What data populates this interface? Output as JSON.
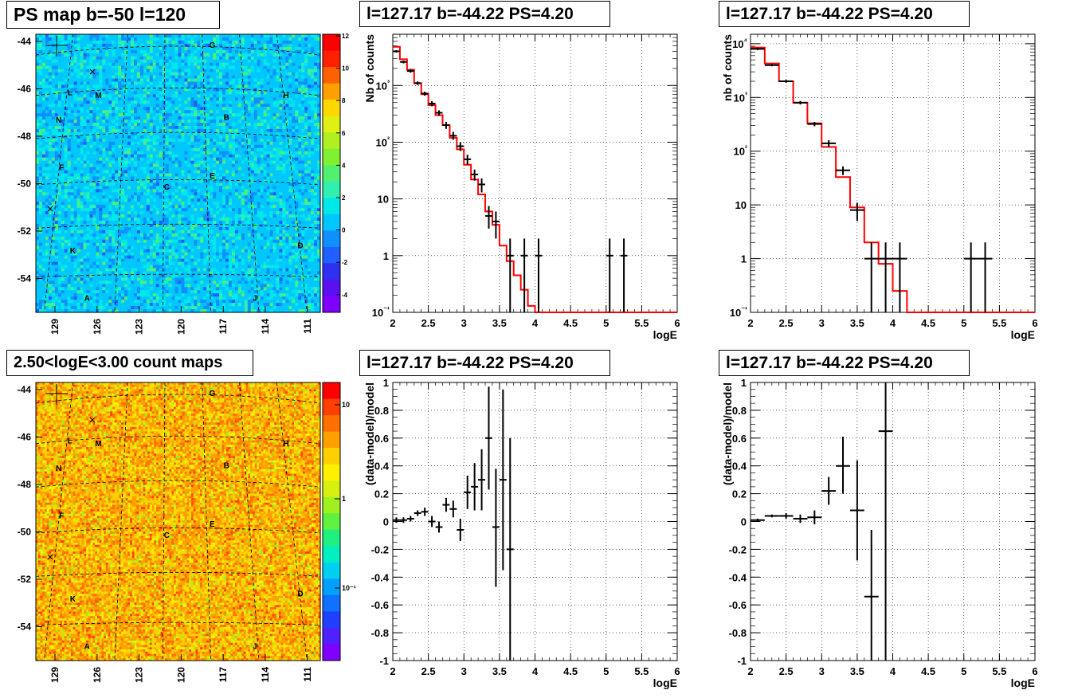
{
  "titles": {
    "map_top": "PS map b=-50 l=120",
    "map_bottom": "2.50<logE<3.00 count maps",
    "spec1": "l=127.17 b=-44.22 PS=4.20",
    "spec2": "l=127.17 b=-44.22 PS=4.20",
    "res1": "l=127.17 b=-44.22 PS=4.20",
    "res2": "l=127.17 b=-44.22 PS=4.20"
  },
  "colors": {
    "model_line": "#ff0000",
    "data": "#000000",
    "grid": "#000000"
  },
  "chart_data": [
    {
      "id": "map_top",
      "type": "heatmap",
      "title": "PS map b=-50 l=120",
      "x_ticks": [
        "129",
        "126",
        "123",
        "120",
        "117",
        "114",
        "111"
      ],
      "y_ticks": [
        "-44",
        "-46",
        "-48",
        "-50",
        "-52",
        "-54"
      ],
      "ylim": [
        -55.5,
        -43.6
      ],
      "xlim": [
        130.5,
        109.5
      ],
      "colorbar": {
        "min": -5,
        "max": 12,
        "ticks": [
          "12",
          "10",
          "8",
          "6",
          "4",
          "2",
          "0",
          "-2",
          "-4"
        ]
      },
      "source_labels": [
        "G",
        "L",
        "M",
        "H",
        "N",
        "B",
        "F",
        "E",
        "C",
        "K",
        "D",
        "A",
        "J"
      ]
    },
    {
      "id": "map_bottom",
      "type": "heatmap",
      "title": "2.50<logE<3.00 count maps",
      "x_ticks": [
        "129",
        "126",
        "123",
        "120",
        "117",
        "114",
        "111"
      ],
      "y_ticks": [
        "-44",
        "-46",
        "-48",
        "-50",
        "-52",
        "-54"
      ],
      "ylim": [
        -55.5,
        -43.6
      ],
      "xlim": [
        130.5,
        109.5
      ],
      "colorbar": {
        "scale": "log",
        "ticks": [
          "10",
          "1",
          "10⁻¹"
        ]
      },
      "source_labels": [
        "G",
        "L",
        "M",
        "H",
        "N",
        "B",
        "F",
        "E",
        "C",
        "K",
        "D",
        "A",
        "J"
      ]
    },
    {
      "id": "spec1",
      "type": "line",
      "title": "l=127.17 b=-44.22 PS=4.20",
      "xlabel": "logE",
      "ylabel": "Nb of counts",
      "xlim": [
        2,
        6
      ],
      "ylim": [
        0.1,
        8000
      ],
      "log_y": true,
      "grid": true,
      "x_ticks": [
        "2",
        "2.5",
        "3",
        "3.5",
        "4",
        "4.5",
        "5",
        "5.5",
        "6"
      ],
      "y_ticks": [
        "10⁻¹",
        "1",
        "10",
        "10²",
        "10³"
      ],
      "model_step": {
        "edges": [
          2.0,
          2.1,
          2.2,
          2.3,
          2.4,
          2.5,
          2.6,
          2.7,
          2.8,
          2.9,
          3.0,
          3.1,
          3.2,
          3.3,
          3.4,
          3.5,
          3.6,
          3.7,
          3.8,
          3.9,
          4.0,
          4.1,
          6.0
        ],
        "values": [
          4800,
          2900,
          1900,
          1100,
          700,
          450,
          300,
          200,
          120,
          75,
          40,
          22,
          12,
          6,
          3.5,
          1.5,
          0.8,
          0.45,
          0.25,
          0.13,
          0.1,
          0.1
        ]
      },
      "points": [
        {
          "x": 2.05,
          "y": 4000,
          "lo": 3800,
          "hi": 4200
        },
        {
          "x": 2.15,
          "y": 2600,
          "lo": 2450,
          "hi": 2750
        },
        {
          "x": 2.25,
          "y": 1800,
          "lo": 1680,
          "hi": 1920
        },
        {
          "x": 2.35,
          "y": 1100,
          "lo": 1020,
          "hi": 1180
        },
        {
          "x": 2.45,
          "y": 720,
          "lo": 660,
          "hi": 780
        },
        {
          "x": 2.55,
          "y": 480,
          "lo": 430,
          "hi": 530
        },
        {
          "x": 2.65,
          "y": 330,
          "lo": 295,
          "hi": 365
        },
        {
          "x": 2.75,
          "y": 200,
          "lo": 172,
          "hi": 228
        },
        {
          "x": 2.85,
          "y": 130,
          "lo": 110,
          "hi": 152
        },
        {
          "x": 2.95,
          "y": 85,
          "lo": 70,
          "hi": 100
        },
        {
          "x": 3.05,
          "y": 50,
          "lo": 40,
          "hi": 60
        },
        {
          "x": 3.15,
          "y": 27,
          "lo": 21,
          "hi": 33
        },
        {
          "x": 3.25,
          "y": 18,
          "lo": 13,
          "hi": 23
        },
        {
          "x": 3.35,
          "y": 5,
          "lo": 3,
          "hi": 7.5
        },
        {
          "x": 3.45,
          "y": 4,
          "lo": 2,
          "hi": 6
        },
        {
          "x": 3.65,
          "y": 1,
          "lo": 0.1,
          "hi": 2
        },
        {
          "x": 3.85,
          "y": 1,
          "lo": 0.1,
          "hi": 2
        },
        {
          "x": 4.05,
          "y": 1,
          "lo": 0.1,
          "hi": 2
        },
        {
          "x": 5.05,
          "y": 1,
          "lo": 0.1,
          "hi": 2
        },
        {
          "x": 5.25,
          "y": 1,
          "lo": 0.1,
          "hi": 2
        }
      ],
      "xerr": 0.05
    },
    {
      "id": "spec2",
      "type": "line",
      "title": "l=127.17 b=-44.22 PS=4.20",
      "xlabel": "logE",
      "ylabel": "nb of counts",
      "xlim": [
        2,
        6
      ],
      "ylim": [
        0.1,
        15000
      ],
      "log_y": true,
      "grid": true,
      "x_ticks": [
        "2",
        "2.5",
        "3",
        "3.5",
        "4",
        "4.5",
        "5",
        "5.5",
        "6"
      ],
      "y_ticks": [
        "10⁻¹",
        "1",
        "10",
        "10²",
        "10³",
        "10⁴"
      ],
      "model_step": {
        "edges": [
          2.0,
          2.2,
          2.4,
          2.6,
          2.8,
          3.0,
          3.2,
          3.4,
          3.6,
          3.8,
          4.0,
          4.2,
          6.0
        ],
        "values": [
          8500,
          4300,
          2000,
          800,
          330,
          120,
          33,
          9,
          2,
          0.8,
          0.25,
          0.1
        ]
      },
      "points": [
        {
          "x": 2.1,
          "y": 8000,
          "lo": 7600,
          "hi": 8400
        },
        {
          "x": 2.3,
          "y": 4000,
          "lo": 3800,
          "hi": 4200
        },
        {
          "x": 2.5,
          "y": 2000,
          "lo": 1880,
          "hi": 2120
        },
        {
          "x": 2.7,
          "y": 800,
          "lo": 740,
          "hi": 860
        },
        {
          "x": 2.9,
          "y": 320,
          "lo": 290,
          "hi": 350
        },
        {
          "x": 3.1,
          "y": 140,
          "lo": 120,
          "hi": 160
        },
        {
          "x": 3.3,
          "y": 44,
          "lo": 36,
          "hi": 52
        },
        {
          "x": 3.5,
          "y": 8,
          "lo": 5,
          "hi": 11
        },
        {
          "x": 3.7,
          "y": 1,
          "lo": 0.1,
          "hi": 2
        },
        {
          "x": 3.9,
          "y": 1,
          "lo": 0.1,
          "hi": 2
        },
        {
          "x": 4.1,
          "y": 1,
          "lo": 0.1,
          "hi": 2
        },
        {
          "x": 5.1,
          "y": 1,
          "lo": 0.1,
          "hi": 2
        },
        {
          "x": 5.3,
          "y": 1,
          "lo": 0.1,
          "hi": 2
        }
      ],
      "xerr": 0.1
    },
    {
      "id": "res1",
      "type": "scatter",
      "title": "l=127.17 b=-44.22 PS=4.20",
      "xlabel": "logE",
      "ylabel": "(data-model)/model",
      "xlim": [
        2,
        6
      ],
      "ylim": [
        -1,
        1
      ],
      "grid": true,
      "x_ticks": [
        "2",
        "2.5",
        "3",
        "3.5",
        "4",
        "4.5",
        "5",
        "5.5",
        "6"
      ],
      "y_ticks": [
        "-1",
        "-0.8",
        "-0.6",
        "-0.4",
        "-0.2",
        "0",
        "0.2",
        "0.4",
        "0.6",
        "0.8",
        "1"
      ],
      "points": [
        {
          "x": 2.05,
          "y": 0.01,
          "lo": -0.01,
          "hi": 0.03
        },
        {
          "x": 2.15,
          "y": 0.01,
          "lo": -0.01,
          "hi": 0.03
        },
        {
          "x": 2.25,
          "y": 0.02,
          "lo": 0.0,
          "hi": 0.04
        },
        {
          "x": 2.35,
          "y": 0.06,
          "lo": 0.04,
          "hi": 0.08
        },
        {
          "x": 2.45,
          "y": 0.07,
          "lo": 0.04,
          "hi": 0.1
        },
        {
          "x": 2.55,
          "y": 0.0,
          "lo": -0.04,
          "hi": 0.04
        },
        {
          "x": 2.65,
          "y": -0.04,
          "lo": -0.08,
          "hi": 0.0
        },
        {
          "x": 2.75,
          "y": 0.12,
          "lo": 0.07,
          "hi": 0.17
        },
        {
          "x": 2.85,
          "y": 0.09,
          "lo": 0.03,
          "hi": 0.15
        },
        {
          "x": 2.95,
          "y": -0.06,
          "lo": -0.14,
          "hi": 0.02
        },
        {
          "x": 3.05,
          "y": 0.21,
          "lo": 0.09,
          "hi": 0.33
        },
        {
          "x": 3.15,
          "y": 0.25,
          "lo": 0.08,
          "hi": 0.42
        },
        {
          "x": 3.25,
          "y": 0.3,
          "lo": 0.08,
          "hi": 0.52
        },
        {
          "x": 3.35,
          "y": 0.6,
          "lo": 0.23,
          "hi": 0.97
        },
        {
          "x": 3.45,
          "y": -0.04,
          "lo": -0.47,
          "hi": 0.38
        },
        {
          "x": 3.55,
          "y": 0.3,
          "lo": -0.35,
          "hi": 0.95
        },
        {
          "x": 3.65,
          "y": -0.2,
          "lo": -1.0,
          "hi": 0.6
        }
      ],
      "xerr": 0.05
    },
    {
      "id": "res2",
      "type": "scatter",
      "title": "l=127.17 b=-44.22 PS=4.20",
      "xlabel": "logE",
      "ylabel": "(data-model)/model",
      "xlim": [
        2,
        6
      ],
      "ylim": [
        -1,
        1
      ],
      "grid": true,
      "x_ticks": [
        "2",
        "2.5",
        "3",
        "3.5",
        "4",
        "4.5",
        "5",
        "5.5",
        "6"
      ],
      "y_ticks": [
        "-1",
        "-0.8",
        "-0.6",
        "-0.4",
        "-0.2",
        "0",
        "0.2",
        "0.4",
        "0.6",
        "0.8",
        "1"
      ],
      "points": [
        {
          "x": 2.1,
          "y": 0.01,
          "lo": 0.0,
          "hi": 0.02
        },
        {
          "x": 2.3,
          "y": 0.04,
          "lo": 0.03,
          "hi": 0.05
        },
        {
          "x": 2.5,
          "y": 0.04,
          "lo": 0.02,
          "hi": 0.06
        },
        {
          "x": 2.7,
          "y": 0.02,
          "lo": -0.01,
          "hi": 0.05
        },
        {
          "x": 2.9,
          "y": 0.03,
          "lo": -0.02,
          "hi": 0.08
        },
        {
          "x": 3.1,
          "y": 0.22,
          "lo": 0.12,
          "hi": 0.32
        },
        {
          "x": 3.3,
          "y": 0.4,
          "lo": 0.2,
          "hi": 0.61
        },
        {
          "x": 3.5,
          "y": 0.08,
          "lo": -0.28,
          "hi": 0.44
        },
        {
          "x": 3.7,
          "y": -0.54,
          "lo": -1.0,
          "hi": -0.06
        },
        {
          "x": 3.9,
          "y": 0.65,
          "lo": -1.0,
          "hi": 1.0
        }
      ],
      "xerr": 0.1
    }
  ]
}
